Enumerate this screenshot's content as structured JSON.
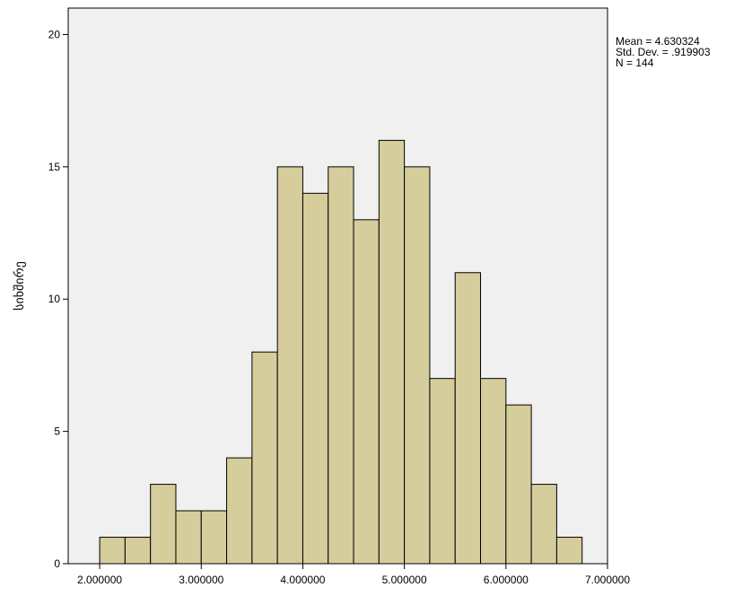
{
  "chart_data": {
    "type": "bar",
    "title": "",
    "xlabel": "",
    "ylabel": "სიხშირე",
    "bin_width": 0.25,
    "bins": [
      {
        "start": 2.0,
        "end": 2.25,
        "count": 1
      },
      {
        "start": 2.25,
        "end": 2.5,
        "count": 1
      },
      {
        "start": 2.5,
        "end": 2.75,
        "count": 3
      },
      {
        "start": 2.75,
        "end": 3.0,
        "count": 2
      },
      {
        "start": 3.0,
        "end": 3.25,
        "count": 2
      },
      {
        "start": 3.25,
        "end": 3.5,
        "count": 4
      },
      {
        "start": 3.5,
        "end": 3.75,
        "count": 8
      },
      {
        "start": 3.75,
        "end": 4.0,
        "count": 15
      },
      {
        "start": 4.0,
        "end": 4.25,
        "count": 14
      },
      {
        "start": 4.25,
        "end": 4.5,
        "count": 15
      },
      {
        "start": 4.5,
        "end": 4.75,
        "count": 13
      },
      {
        "start": 4.75,
        "end": 5.0,
        "count": 16
      },
      {
        "start": 5.0,
        "end": 5.25,
        "count": 15
      },
      {
        "start": 5.25,
        "end": 5.5,
        "count": 7
      },
      {
        "start": 5.5,
        "end": 5.75,
        "count": 11
      },
      {
        "start": 5.75,
        "end": 6.0,
        "count": 7
      },
      {
        "start": 6.0,
        "end": 6.25,
        "count": 6
      },
      {
        "start": 6.25,
        "end": 6.5,
        "count": 3
      },
      {
        "start": 6.5,
        "end": 6.75,
        "count": 1
      }
    ],
    "xlim": [
      1.69,
      7.0
    ],
    "ylim": [
      0,
      21
    ],
    "x_ticks": [
      {
        "value": 2,
        "label": "2.000000"
      },
      {
        "value": 3,
        "label": "3.000000"
      },
      {
        "value": 4,
        "label": "4.000000"
      },
      {
        "value": 5,
        "label": "5.000000"
      },
      {
        "value": 6,
        "label": "6.000000"
      },
      {
        "value": 7,
        "label": "7.000000"
      }
    ],
    "y_ticks": [
      {
        "value": 0,
        "label": "0"
      },
      {
        "value": 5,
        "label": "5"
      },
      {
        "value": 10,
        "label": "10"
      },
      {
        "value": 15,
        "label": "15"
      },
      {
        "value": 20,
        "label": "20"
      }
    ],
    "grid": false,
    "legend": null,
    "stats": {
      "mean": "Mean = 4.630324",
      "std_dev": "Std. Dev. = .919903",
      "n": "N = 144"
    },
    "colors": {
      "bar_fill": "#d5cd9b",
      "bar_stroke": "#000000",
      "plot_background": "#f0f0f0",
      "page_background": "#ffffff",
      "axis": "#000000"
    }
  }
}
